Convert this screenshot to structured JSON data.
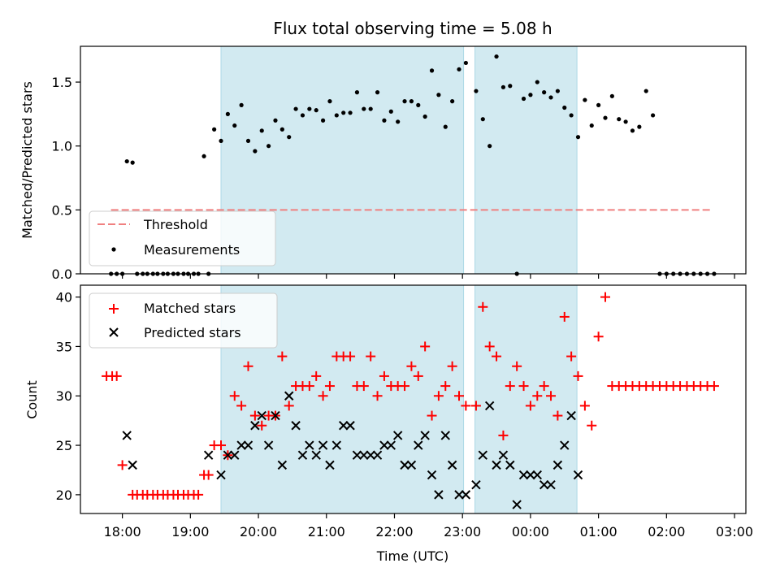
{
  "title": "Flux total observing time = 5.08 h",
  "colors": {
    "threshold": "#f08080",
    "measurements": "#000000",
    "matched": "#ff0000",
    "predicted": "#000000",
    "shading": "#add8e6"
  },
  "chart_data": [
    {
      "type": "scatter",
      "ylabel": "Matched/Predicted stars",
      "ylim": [
        0,
        1.78
      ],
      "yticks": [
        "0.0",
        "0.5",
        "1.0",
        "1.5"
      ],
      "shaded_intervals": [
        [
          "19:27",
          "23:01"
        ],
        [
          "23:11",
          "00:41"
        ]
      ],
      "legend_position": "lower-left",
      "series": [
        {
          "name": "Threshold",
          "style": "dashed-line",
          "x": [
            "17:50",
            "02:40"
          ],
          "y": [
            0.5,
            0.5
          ]
        },
        {
          "name": "Measurements",
          "style": "dots",
          "x": [
            "17:50",
            "17:55",
            "18:00",
            "18:04",
            "18:09",
            "18:13",
            "18:18",
            "18:22",
            "18:27",
            "18:31",
            "18:36",
            "18:40",
            "18:45",
            "18:49",
            "18:54",
            "18:58",
            "19:03",
            "19:07",
            "19:12",
            "19:16",
            "19:21",
            "19:27",
            "19:33",
            "19:39",
            "19:45",
            "19:51",
            "19:57",
            "20:03",
            "20:09",
            "20:15",
            "20:21",
            "20:27",
            "20:33",
            "20:39",
            "20:45",
            "20:51",
            "20:57",
            "21:03",
            "21:09",
            "21:15",
            "21:21",
            "21:27",
            "21:33",
            "21:39",
            "21:45",
            "21:51",
            "21:57",
            "22:03",
            "22:09",
            "22:15",
            "22:21",
            "22:27",
            "22:33",
            "22:39",
            "22:45",
            "22:51",
            "22:57",
            "23:03",
            "23:12",
            "23:18",
            "23:24",
            "23:30",
            "23:36",
            "23:42",
            "23:48",
            "23:54",
            "00:00",
            "00:06",
            "00:12",
            "00:18",
            "00:24",
            "00:30",
            "00:36",
            "00:42",
            "00:48",
            "00:54",
            "01:00",
            "01:06",
            "01:12",
            "01:18",
            "01:24",
            "01:30",
            "01:36",
            "01:42",
            "01:48",
            "01:54",
            "02:00",
            "02:06",
            "02:12",
            "02:18",
            "02:24",
            "02:30",
            "02:36",
            "02:42"
          ],
          "y": [
            0,
            0,
            0,
            0.88,
            0.87,
            0,
            0,
            0,
            0,
            0,
            0,
            0,
            0,
            0,
            0,
            0,
            0,
            0,
            0.92,
            0,
            1.13,
            1.04,
            1.25,
            1.16,
            1.32,
            1.04,
            0.96,
            1.12,
            1.0,
            1.2,
            1.13,
            1.07,
            1.29,
            1.24,
            1.29,
            1.28,
            1.2,
            1.35,
            1.24,
            1.26,
            1.26,
            1.42,
            1.29,
            1.29,
            1.42,
            1.2,
            1.27,
            1.19,
            1.35,
            1.35,
            1.32,
            1.23,
            1.59,
            1.4,
            1.15,
            1.35,
            1.6,
            1.65,
            1.43,
            1.21,
            1.0,
            1.7,
            1.46,
            1.47,
            0,
            1.37,
            1.4,
            1.5,
            1.42,
            1.38,
            1.43,
            1.3,
            1.24,
            1.07,
            1.36,
            1.16,
            1.32,
            1.22,
            1.39,
            1.21,
            1.19,
            1.12,
            1.15,
            1.43,
            1.24,
            0,
            0,
            0,
            0,
            0,
            0,
            0,
            0,
            0
          ]
        }
      ]
    },
    {
      "type": "scatter",
      "xlabel": "Time (UTC)",
      "ylabel": "Count",
      "ylim": [
        18.1,
        41.2
      ],
      "xlim": [
        "17:23",
        "03:10"
      ],
      "yticks": [
        "20",
        "25",
        "30",
        "35",
        "40"
      ],
      "xticks": [
        "18:00",
        "19:00",
        "20:00",
        "21:00",
        "22:00",
        "23:00",
        "00:00",
        "01:00",
        "02:00",
        "03:00"
      ],
      "shaded_intervals": [
        [
          "19:27",
          "23:01"
        ],
        [
          "23:11",
          "00:41"
        ]
      ],
      "legend_position": "upper-left",
      "series": [
        {
          "name": "Matched stars",
          "style": "plus",
          "x": [
            "17:46",
            "17:51",
            "17:55",
            "18:00",
            "18:09",
            "18:13",
            "18:18",
            "18:22",
            "18:27",
            "18:31",
            "18:36",
            "18:40",
            "18:45",
            "18:49",
            "18:54",
            "18:58",
            "19:03",
            "19:07",
            "19:12",
            "19:16",
            "19:21",
            "19:27",
            "19:33",
            "19:39",
            "19:45",
            "19:51",
            "19:57",
            "20:03",
            "20:09",
            "20:15",
            "20:21",
            "20:27",
            "20:33",
            "20:39",
            "20:45",
            "20:51",
            "20:57",
            "21:03",
            "21:09",
            "21:15",
            "21:21",
            "21:27",
            "21:33",
            "21:39",
            "21:45",
            "21:51",
            "21:57",
            "22:03",
            "22:09",
            "22:15",
            "22:21",
            "22:27",
            "22:33",
            "22:39",
            "22:45",
            "22:51",
            "22:57",
            "23:03",
            "23:12",
            "23:18",
            "23:24",
            "23:30",
            "23:36",
            "23:42",
            "23:48",
            "23:54",
            "00:00",
            "00:06",
            "00:12",
            "00:18",
            "00:24",
            "00:30",
            "00:36",
            "00:42",
            "00:48",
            "00:54",
            "01:00",
            "01:06",
            "01:12",
            "01:18",
            "01:24",
            "01:30",
            "01:36",
            "01:42",
            "01:48",
            "01:54",
            "02:00",
            "02:06",
            "02:12",
            "02:18",
            "02:24",
            "02:30",
            "02:36",
            "02:42"
          ],
          "y": [
            32,
            32,
            32,
            23,
            20,
            20,
            20,
            20,
            20,
            20,
            20,
            20,
            20,
            20,
            20,
            20,
            20,
            20,
            22,
            22,
            25,
            25,
            24,
            30,
            29,
            33,
            28,
            27,
            28,
            28,
            34,
            29,
            31,
            31,
            31,
            32,
            30,
            31,
            34,
            34,
            34,
            31,
            31,
            34,
            30,
            32,
            31,
            31,
            31,
            33,
            32,
            35,
            28,
            30,
            31,
            33,
            30,
            29,
            29,
            39,
            35,
            34,
            26,
            31,
            33,
            31,
            29,
            30,
            31,
            30,
            28,
            38,
            34,
            32,
            29,
            27,
            36,
            40,
            31,
            31,
            31,
            31,
            31,
            31,
            31,
            31,
            31,
            31,
            31,
            31,
            31,
            31,
            31,
            31
          ]
        },
        {
          "name": "Predicted stars",
          "style": "cross",
          "x": [
            "18:04",
            "18:09",
            "19:16",
            "19:27",
            "19:33",
            "19:39",
            "19:45",
            "19:51",
            "19:57",
            "20:03",
            "20:09",
            "20:15",
            "20:21",
            "20:27",
            "20:33",
            "20:39",
            "20:45",
            "20:51",
            "20:57",
            "21:03",
            "21:09",
            "21:15",
            "21:21",
            "21:27",
            "21:33",
            "21:39",
            "21:45",
            "21:51",
            "21:57",
            "22:03",
            "22:09",
            "22:15",
            "22:21",
            "22:27",
            "22:33",
            "22:39",
            "22:45",
            "22:51",
            "22:57",
            "23:03",
            "23:12",
            "23:18",
            "23:24",
            "23:30",
            "23:36",
            "23:42",
            "23:48",
            "23:54",
            "00:00",
            "00:06",
            "00:12",
            "00:18",
            "00:24",
            "00:30",
            "00:36",
            "00:42"
          ],
          "y": [
            26,
            23,
            24,
            22,
            24,
            24,
            25,
            25,
            27,
            28,
            25,
            28,
            23,
            30,
            27,
            24,
            25,
            24,
            25,
            23,
            25,
            27,
            27,
            24,
            24,
            24,
            24,
            25,
            25,
            26,
            23,
            23,
            25,
            26,
            22,
            20,
            26,
            23,
            20,
            20,
            21,
            24,
            29,
            23,
            24,
            23,
            19,
            22,
            22,
            22,
            21,
            21,
            23,
            25,
            28,
            22
          ]
        }
      ]
    }
  ]
}
